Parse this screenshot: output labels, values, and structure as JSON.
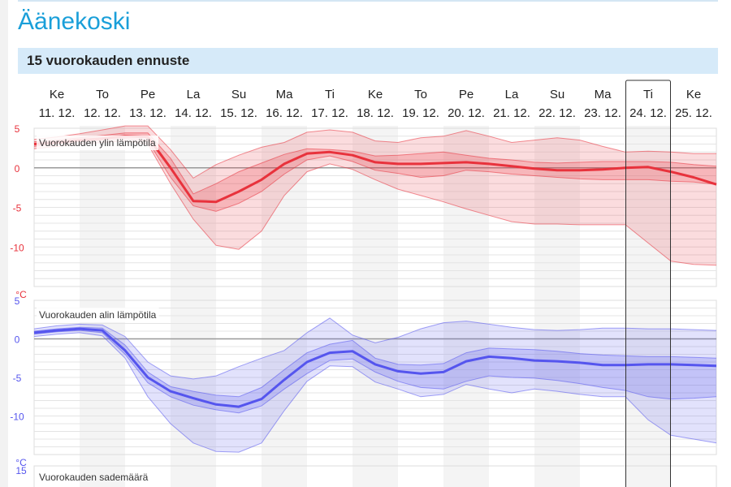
{
  "page": {
    "city": "Äänekoski",
    "panel_title": "15 vuorokauden ennuste"
  },
  "colors": {
    "max_temp": "#e8323c",
    "min_temp": "#5555ee",
    "header_bg": "#d6eaf9",
    "city": "#1a9fd9"
  },
  "days": [
    {
      "weekday": "Ke",
      "date": "11. 12."
    },
    {
      "weekday": "To",
      "date": "12. 12."
    },
    {
      "weekday": "Pe",
      "date": "13. 12."
    },
    {
      "weekday": "La",
      "date": "14. 12."
    },
    {
      "weekday": "Su",
      "date": "15. 12."
    },
    {
      "weekday": "Ma",
      "date": "16. 12."
    },
    {
      "weekday": "Ti",
      "date": "17. 12."
    },
    {
      "weekday": "Ke",
      "date": "18. 12."
    },
    {
      "weekday": "To",
      "date": "19. 12."
    },
    {
      "weekday": "Pe",
      "date": "20. 12."
    },
    {
      "weekday": "La",
      "date": "21. 12."
    },
    {
      "weekday": "Su",
      "date": "22. 12."
    },
    {
      "weekday": "Ma",
      "date": "23. 12."
    },
    {
      "weekday": "Ti",
      "date": "24. 12."
    },
    {
      "weekday": "Ke",
      "date": "25. 12."
    }
  ],
  "highlighted_day_index": 13,
  "chart_data": [
    {
      "type": "area",
      "title": "Vuorokauden ylin lämpötila",
      "unit": "°C",
      "ylim": [
        -15,
        5
      ],
      "yticks": [
        5,
        0,
        -5,
        -10
      ],
      "grid": true,
      "x": [
        10.5,
        11,
        11.5,
        12,
        12.5,
        13,
        13.5,
        14,
        14.5,
        15,
        15.5,
        16,
        16.5,
        17,
        17.5,
        18,
        18.5,
        19,
        19.5,
        20,
        20.5,
        21,
        21.5,
        22,
        22.5,
        23,
        23.5,
        24,
        24.5,
        25,
        25.5
      ],
      "median": [
        3,
        3.2,
        3.5,
        3.7,
        4,
        3.9,
        0,
        -4.2,
        -4.3,
        -3,
        -1.5,
        0.5,
        1.8,
        2,
        1.6,
        0.7,
        0.5,
        0.5,
        0.6,
        0.7,
        0.5,
        0.2,
        -0.1,
        -0.3,
        -0.3,
        -0.2,
        0,
        0.1,
        -0.5,
        -1.2,
        -2.1
      ],
      "p25": [
        2.7,
        3,
        3.3,
        3.5,
        3.7,
        3.4,
        -1.2,
        -4.8,
        -5.5,
        -4.5,
        -3,
        -0.8,
        1,
        1.5,
        0.8,
        -0.3,
        -0.7,
        -1.2,
        -1,
        -0.3,
        -0.5,
        -0.8,
        -1,
        -1.2,
        -1.4,
        -1.5,
        -1.5,
        -1.5,
        -1.7,
        -1.8,
        -2.1
      ],
      "p75": [
        3.3,
        3.5,
        3.8,
        4.1,
        4.4,
        4.4,
        1.2,
        -3.3,
        -2,
        -0.5,
        0.6,
        1.7,
        2.4,
        2.3,
        2.1,
        1.5,
        1.6,
        1.8,
        2,
        1.6,
        1.2,
        1,
        0.7,
        0.6,
        0.7,
        0.8,
        0.8,
        0.8,
        0.7,
        0.4,
        0.2
      ],
      "p10": [
        2.4,
        2.7,
        3,
        3.2,
        3.4,
        3,
        -2,
        -6.5,
        -9.8,
        -10.3,
        -8,
        -3.5,
        -0.5,
        0.5,
        -0.2,
        -1.5,
        -2.7,
        -3.5,
        -4.3,
        -5.2,
        -6,
        -6.8,
        -7.1,
        -7.1,
        -7.2,
        -7.2,
        -7.2,
        -9.5,
        -11.8,
        -12.2,
        -12.3
      ],
      "p90": [
        3.6,
        3.9,
        4.3,
        4.8,
        5.3,
        5.3,
        2.3,
        -1.3,
        0.4,
        1.6,
        2.6,
        3.2,
        4.5,
        4.8,
        4.5,
        3.4,
        3.2,
        3.8,
        4,
        4.7,
        4,
        3.2,
        3.5,
        3.8,
        3.5,
        2.7,
        2,
        2.1,
        2,
        1.8,
        1.8
      ]
    },
    {
      "type": "area",
      "title": "Vuorokauden alin lämpötila",
      "unit": "°C",
      "ylim": [
        -15,
        5
      ],
      "yticks": [
        5,
        0,
        -5,
        -10
      ],
      "grid": true,
      "x": [
        10.5,
        11,
        11.5,
        12,
        12.5,
        13,
        13.5,
        14,
        14.5,
        15,
        15.5,
        16,
        16.5,
        17,
        17.5,
        18,
        18.5,
        19,
        19.5,
        20,
        20.5,
        21,
        21.5,
        22,
        22.5,
        23,
        23.5,
        24,
        24.5,
        25,
        25.5
      ],
      "median": [
        0.8,
        1.1,
        1.3,
        1.1,
        -1.5,
        -5,
        -6.8,
        -7.7,
        -8.5,
        -8.8,
        -7.8,
        -5.3,
        -3,
        -1.8,
        -1.6,
        -3.3,
        -4.2,
        -4.5,
        -4.3,
        -2.9,
        -2.3,
        -2.5,
        -2.8,
        -2.9,
        -3.1,
        -3.4,
        -3.4,
        -3.3,
        -3.3,
        -3.4,
        -3.5
      ],
      "p25": [
        0.6,
        0.9,
        1.1,
        0.8,
        -2,
        -5.7,
        -7.5,
        -8.6,
        -9.2,
        -9.6,
        -8.7,
        -6.5,
        -4.5,
        -2.8,
        -2.6,
        -4.3,
        -5.5,
        -6.3,
        -6.5,
        -5.5,
        -4.8,
        -5,
        -5.1,
        -5.4,
        -5.8,
        -6.3,
        -6.7,
        -7.5,
        -7.8,
        -7.7,
        -7.5
      ],
      "p75": [
        1,
        1.3,
        1.5,
        1.4,
        -0.8,
        -4.3,
        -6.2,
        -6.8,
        -7.3,
        -7.5,
        -6.3,
        -4,
        -1.8,
        -0.7,
        -0.2,
        -2.5,
        -3.3,
        -3.4,
        -3.2,
        -1.8,
        -1.2,
        -1.3,
        -1.4,
        -1.6,
        -1.9,
        -2.1,
        -2.2,
        -2.3,
        -2.3,
        -2.4,
        -2.5
      ],
      "p10": [
        0.3,
        0.6,
        0.8,
        0.4,
        -2.5,
        -7.5,
        -11,
        -13.5,
        -14.6,
        -14.7,
        -13.5,
        -9.3,
        -5.5,
        -3.5,
        -3.6,
        -5.6,
        -6.5,
        -7.5,
        -7.2,
        -5.9,
        -6.5,
        -7,
        -6.5,
        -6.8,
        -7.2,
        -7.5,
        -7.5,
        -10.5,
        -12.5,
        -13,
        -13.5
      ],
      "p90": [
        1.3,
        1.7,
        1.9,
        1.8,
        0.3,
        -3,
        -4.8,
        -5.2,
        -4.8,
        -3.6,
        -2.5,
        -1.5,
        0.8,
        2.7,
        0.5,
        -0.5,
        0.2,
        1.3,
        2.1,
        2.3,
        1.9,
        1.5,
        1.2,
        1.1,
        1.2,
        1.4,
        1.4,
        1.3,
        1.3,
        1.2,
        1.1
      ]
    },
    {
      "type": "bar",
      "title": "Vuorokauden sademäärä",
      "yticks": [
        15
      ]
    }
  ]
}
